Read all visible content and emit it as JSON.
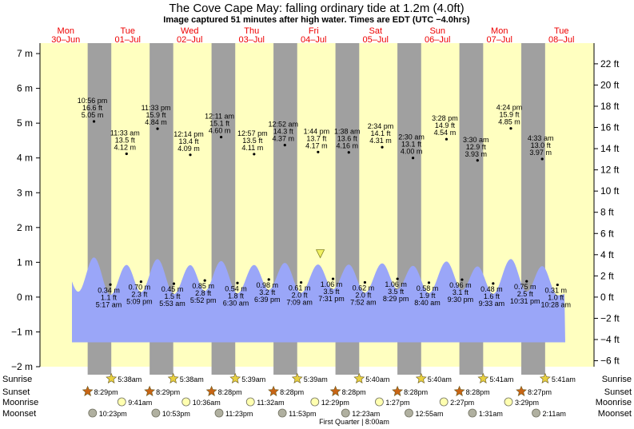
{
  "title": "The Cove Cape May: falling  ordinary tide at 1.2m (4.0ft)",
  "subtitle": "Image captured 51 minutes after high water. Times are EDT (UTC −4.0hrs)",
  "days": [
    {
      "dow": "Mon",
      "date": "30–Jun"
    },
    {
      "dow": "Tue",
      "date": "01–Jul"
    },
    {
      "dow": "Wed",
      "date": "02–Jul"
    },
    {
      "dow": "Thu",
      "date": "03–Jul"
    },
    {
      "dow": "Fri",
      "date": "04–Jul"
    },
    {
      "dow": "Sat",
      "date": "05–Jul"
    },
    {
      "dow": "Sun",
      "date": "06–Jul"
    },
    {
      "dow": "Mon",
      "date": "07–Jul"
    },
    {
      "dow": "Tue",
      "date": "08–Jul"
    }
  ],
  "legend": {
    "sunrise": "Sunrise",
    "sunset": "Sunset",
    "moonrise": "Moonrise",
    "moonset": "Moonset"
  },
  "moon_phase": "First Quarter | 8:00am",
  "colors": {
    "day": "#ffffc0",
    "night": "#a0a0a0",
    "water": "#9aa6f8",
    "day_label": "#ee0000",
    "sun_star": "#e8d040",
    "sunset_star": "#c86414",
    "moonrise": "#ffffb0",
    "moonset": "#b0b0a0"
  },
  "chart_data": {
    "type": "area",
    "title": "The Cove Cape May: falling  ordinary tide at 1.2m (4.0ft)",
    "time_range": [
      "2025-06-30 00:00",
      "2025-07-08 12:00"
    ],
    "y_left": {
      "unit": "m",
      "ylim": [
        -2,
        7.3
      ],
      "ticks": [
        "−2 m",
        "−1 m",
        "0 m",
        "1 m",
        "2 m",
        "3 m",
        "4 m",
        "5 m",
        "6 m",
        "7 m"
      ]
    },
    "y_right": {
      "unit": "ft",
      "ticks": [
        "−6 ft",
        "−4 ft",
        "−2 ft",
        "0 ft",
        "2 ft",
        "4 ft",
        "6 ft",
        "8 ft",
        "10 ft",
        "12 ft",
        "14 ft",
        "16 ft",
        "18 ft",
        "20 ft",
        "22 ft"
      ]
    },
    "high_tides": [
      {
        "day": 0,
        "time": "10:56 pm",
        "ft": "16.6 ft",
        "m": "5.05 m",
        "value_m": 5.05
      },
      {
        "day": 1,
        "time": "11:33 am",
        "ft": "13.5 ft",
        "m": "4.12 m",
        "value_m": 4.12
      },
      {
        "day": 1,
        "time": "11:33 pm",
        "ft": "15.9 ft",
        "m": "4.84 m",
        "value_m": 4.84
      },
      {
        "day": 2,
        "time": "12:14 pm",
        "ft": "13.4 ft",
        "m": "4.09 m",
        "value_m": 4.09
      },
      {
        "day": 3,
        "time": "12:11 am",
        "ft": "15.1 ft",
        "m": "4.60 m",
        "value_m": 4.6
      },
      {
        "day": 3,
        "time": "12:57 pm",
        "ft": "13.5 ft",
        "m": "4.11 m",
        "value_m": 4.11
      },
      {
        "day": 4,
        "time": "12:52 am",
        "ft": "14.3 ft",
        "m": "4.37 m",
        "value_m": 4.37
      },
      {
        "day": 4,
        "time": "1:44 pm",
        "ft": "13.7 ft",
        "m": "4.17 m",
        "value_m": 4.17
      },
      {
        "day": 5,
        "time": "1:38 am",
        "ft": "13.6 ft",
        "m": "4.16 m",
        "value_m": 4.16
      },
      {
        "day": 5,
        "time": "2:34 pm",
        "ft": "14.1 ft",
        "m": "4.31 m",
        "value_m": 4.31
      },
      {
        "day": 6,
        "time": "2:30 am",
        "ft": "13.1 ft",
        "m": "4.00 m",
        "value_m": 4.0
      },
      {
        "day": 6,
        "time": "3:28 pm",
        "ft": "14.9 ft",
        "m": "4.54 m",
        "value_m": 4.54
      },
      {
        "day": 7,
        "time": "3:30 am",
        "ft": "12.9 ft",
        "m": "3.93 m",
        "value_m": 3.93
      },
      {
        "day": 7,
        "time": "4:24 pm",
        "ft": "15.9 ft",
        "m": "4.85 m",
        "value_m": 4.85
      },
      {
        "day": 8,
        "time": "4:33 am",
        "ft": "13.0 ft",
        "m": "3.97 m",
        "value_m": 3.97
      }
    ],
    "low_tides": [
      {
        "day": 1,
        "time": "5:17 am",
        "ft": "1.1 ft",
        "m": "0.34 m",
        "value_m": 0.34
      },
      {
        "day": 1,
        "time": "5:09 pm",
        "ft": "2.3 ft",
        "m": "0.70 m",
        "value_m": 0.7
      },
      {
        "day": 2,
        "time": "5:53 am",
        "ft": "1.5 ft",
        "m": "0.45 m",
        "value_m": 0.45
      },
      {
        "day": 2,
        "time": "5:52 pm",
        "ft": "2.8 ft",
        "m": "0.85 m",
        "value_m": 0.85
      },
      {
        "day": 3,
        "time": "6:30 am",
        "ft": "1.8 ft",
        "m": "0.54 m",
        "value_m": 0.54
      },
      {
        "day": 3,
        "time": "6:39 pm",
        "ft": "3.2 ft",
        "m": "0.98 m",
        "value_m": 0.98
      },
      {
        "day": 4,
        "time": "7:09 am",
        "ft": "2.0 ft",
        "m": "0.61 m",
        "value_m": 0.61
      },
      {
        "day": 4,
        "time": "7:31 pm",
        "ft": "3.5 ft",
        "m": "1.06 m",
        "value_m": 1.06
      },
      {
        "day": 5,
        "time": "7:52 am",
        "ft": "2.0 ft",
        "m": "0.62 m",
        "value_m": 0.62
      },
      {
        "day": 5,
        "time": "8:29 pm",
        "ft": "3.5 ft",
        "m": "1.06 m",
        "value_m": 1.06
      },
      {
        "day": 6,
        "time": "8:40 am",
        "ft": "1.9 ft",
        "m": "0.58 m",
        "value_m": 0.58
      },
      {
        "day": 6,
        "time": "9:30 pm",
        "ft": "3.1 ft",
        "m": "0.96 m",
        "value_m": 0.96
      },
      {
        "day": 7,
        "time": "9:33 am",
        "ft": "1.6 ft",
        "m": "0.48 m",
        "value_m": 0.48
      },
      {
        "day": 7,
        "time": "10:31 pm",
        "ft": "2.5 ft",
        "m": "0.75 m",
        "value_m": 0.75
      },
      {
        "day": 8,
        "time": "10:28 am",
        "ft": "1.0 ft",
        "m": "0.31 m",
        "value_m": 0.31
      }
    ],
    "current": {
      "day": 4,
      "time": "2:35 pm",
      "value_m": 1.2
    },
    "sunrise": [
      {
        "day": 1,
        "time": "5:38am"
      },
      {
        "day": 2,
        "time": "5:38am"
      },
      {
        "day": 3,
        "time": "5:39am"
      },
      {
        "day": 4,
        "time": "5:39am"
      },
      {
        "day": 5,
        "time": "5:40am"
      },
      {
        "day": 6,
        "time": "5:40am"
      },
      {
        "day": 7,
        "time": "5:41am"
      },
      {
        "day": 8,
        "time": "5:41am"
      }
    ],
    "sunset": [
      {
        "day": 0,
        "time": "8:29pm"
      },
      {
        "day": 1,
        "time": "8:29pm"
      },
      {
        "day": 2,
        "time": "8:28pm"
      },
      {
        "day": 3,
        "time": "8:28pm"
      },
      {
        "day": 4,
        "time": "8:28pm"
      },
      {
        "day": 5,
        "time": "8:28pm"
      },
      {
        "day": 6,
        "time": "8:28pm"
      },
      {
        "day": 7,
        "time": "8:27pm"
      }
    ],
    "moonrise": [
      {
        "day": 1,
        "time": "9:41am"
      },
      {
        "day": 2,
        "time": "10:36am"
      },
      {
        "day": 3,
        "time": "11:32am"
      },
      {
        "day": 4,
        "time": "12:29pm"
      },
      {
        "day": 5,
        "time": "1:27pm"
      },
      {
        "day": 6,
        "time": "2:27pm"
      },
      {
        "day": 7,
        "time": "3:29pm"
      }
    ],
    "moonset": [
      {
        "day": 0,
        "time": "10:23pm"
      },
      {
        "day": 1,
        "time": "10:53pm"
      },
      {
        "day": 2,
        "time": "11:23pm"
      },
      {
        "day": 3,
        "time": "11:53pm"
      },
      {
        "day": 5,
        "time": "12:23am"
      },
      {
        "day": 6,
        "time": "12:55am"
      },
      {
        "day": 7,
        "time": "1:31am"
      },
      {
        "day": 8,
        "time": "2:11am"
      }
    ]
  }
}
